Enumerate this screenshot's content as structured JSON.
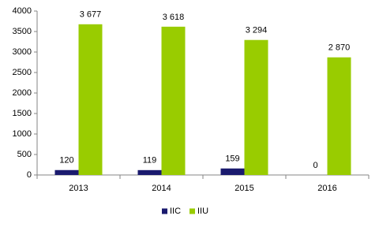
{
  "chart_data": {
    "type": "bar",
    "categories": [
      "2013",
      "2014",
      "2015",
      "2016"
    ],
    "series": [
      {
        "name": "IIC",
        "color": "#1a1a6e",
        "values": [
          120,
          119,
          159,
          0
        ]
      },
      {
        "name": "IIU",
        "color": "#99cc00",
        "values": [
          3677,
          3618,
          3294,
          2870
        ],
        "value_labels": [
          "3 677",
          "3 618",
          "3 294",
          "2 870"
        ]
      }
    ],
    "ylim": [
      0,
      4000
    ],
    "yticks": [
      0,
      500,
      1000,
      1500,
      2000,
      2500,
      3000,
      3500,
      4000
    ],
    "grid": false,
    "legend": "bottom"
  }
}
